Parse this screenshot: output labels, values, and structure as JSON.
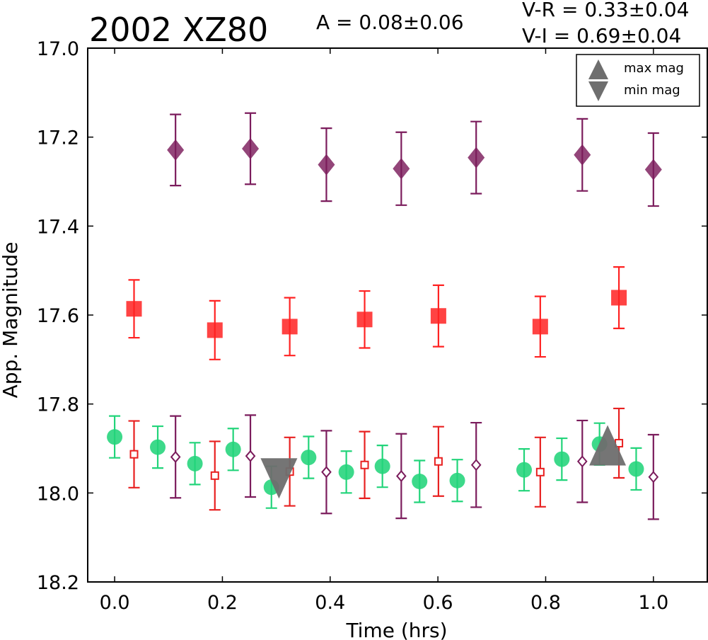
{
  "chart_data": {
    "type": "scatter",
    "title": "2002 XZ80",
    "annotations": {
      "amplitude": "A  = 0.08±0.06",
      "vr": "V-R = 0.33±0.04",
      "vi": "V-I  = 0.69±0.04"
    },
    "xlabel": "Time (hrs)",
    "ylabel": "App. Magnitude",
    "xlim": [
      -0.05,
      1.1
    ],
    "ylim": [
      18.2,
      17.0
    ],
    "y_inverted": true,
    "x_ticks": [
      "0.0",
      "0.2",
      "0.4",
      "0.6",
      "0.8",
      "1.0"
    ],
    "y_ticks": [
      "17.0",
      "17.2",
      "17.4",
      "17.6",
      "17.8",
      "18.0",
      "18.2"
    ],
    "grid": false,
    "legend": {
      "position": "top-right",
      "entries": [
        {
          "label": "max mag",
          "marker": "triangle-up"
        },
        {
          "label": "min mag",
          "marker": "triangle-down"
        }
      ]
    },
    "colors": {
      "I_filled": "#7b1c5c",
      "R_filled": "#ff2222",
      "V": "#22d47a",
      "R_open": "#e82020",
      "I_open": "#7b1c5c",
      "extrema": "#6e6e6e"
    },
    "series": [
      {
        "marker": "diamond-filled",
        "color": "#7b1c5c",
        "x": [
          0.113,
          0.252,
          0.393,
          0.532,
          0.671,
          0.868,
          1.0
        ],
        "y": [
          17.229,
          17.226,
          17.262,
          17.271,
          17.246,
          17.24,
          17.273
        ],
        "err": [
          0.08,
          0.08,
          0.082,
          0.082,
          0.081,
          0.081,
          0.082
        ]
      },
      {
        "marker": "square-filled",
        "color": "#ff2222",
        "x": [
          0.036,
          0.186,
          0.325,
          0.464,
          0.601,
          0.79,
          0.936
        ],
        "y": [
          17.586,
          17.634,
          17.626,
          17.61,
          17.602,
          17.626,
          17.561
        ],
        "err": [
          0.065,
          0.066,
          0.065,
          0.064,
          0.069,
          0.068,
          0.069
        ]
      },
      {
        "marker": "circle-filled",
        "color": "#22d47a",
        "x": [
          0.0,
          0.08,
          0.149,
          0.22,
          0.291,
          0.36,
          0.43,
          0.497,
          0.566,
          0.636,
          0.76,
          0.83,
          0.9,
          0.968
        ],
        "y": [
          17.874,
          17.897,
          17.934,
          17.902,
          17.987,
          17.92,
          17.953,
          17.94,
          17.974,
          17.972,
          17.948,
          17.924,
          17.89,
          17.946
        ],
        "err": [
          0.047,
          0.047,
          0.047,
          0.047,
          0.047,
          0.047,
          0.047,
          0.047,
          0.047,
          0.047,
          0.047,
          0.047,
          0.047,
          0.047
        ]
      },
      {
        "marker": "square-open",
        "color": "#e82020",
        "x": [
          0.036,
          0.186,
          0.325,
          0.464,
          0.601,
          0.79,
          0.936
        ],
        "y": [
          17.913,
          17.961,
          17.952,
          17.937,
          17.929,
          17.953,
          17.888
        ],
        "err": [
          0.075,
          0.077,
          0.077,
          0.075,
          0.078,
          0.078,
          0.078
        ]
      },
      {
        "marker": "diamond-open",
        "color": "#7b1c5c",
        "x": [
          0.113,
          0.252,
          0.393,
          0.532,
          0.671,
          0.868,
          1.0
        ],
        "y": [
          17.919,
          17.917,
          17.953,
          17.962,
          17.937,
          17.929,
          17.964
        ],
        "err": [
          0.092,
          0.092,
          0.093,
          0.095,
          0.095,
          0.092,
          0.095
        ]
      }
    ],
    "extrema": [
      {
        "kind": "min",
        "marker": "triangle-down",
        "x": 0.305,
        "y": 17.96
      },
      {
        "kind": "max",
        "marker": "triangle-up",
        "x": 0.915,
        "y": 17.9
      }
    ]
  }
}
